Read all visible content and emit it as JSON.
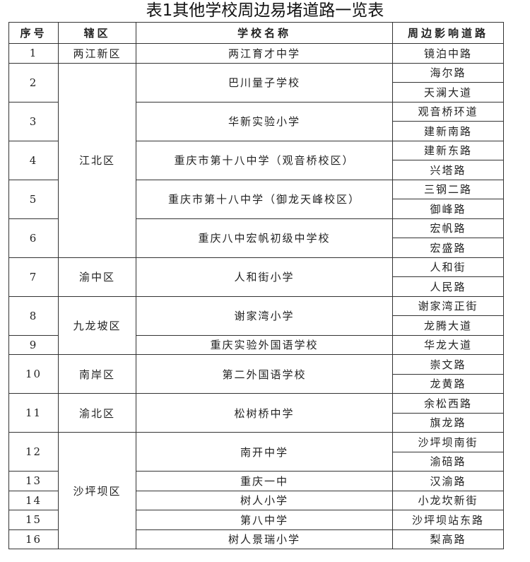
{
  "title": "表1其他学校周边易堵道路一览表",
  "table": {
    "header": [
      "序号",
      "辖区",
      "学校名称",
      "周边影响道路"
    ],
    "districts": [
      {
        "name": "两江新区",
        "schools": [
          {
            "no": "1",
            "name": "两江育才中学",
            "roads": [
              "镜泊中路"
            ]
          }
        ]
      },
      {
        "name": "江北区",
        "schools": [
          {
            "no": "2",
            "name": "巴川量子学校",
            "roads": [
              "海尔路",
              "天澜大道"
            ]
          },
          {
            "no": "3",
            "name": "华新实验小学",
            "roads": [
              "观音桥环道",
              "建新南路"
            ]
          },
          {
            "no": "4",
            "name": "重庆市第十八中学（观音桥校区）",
            "roads": [
              "建新东路",
              "兴塔路"
            ]
          },
          {
            "no": "5",
            "name": "重庆市第十八中学（御龙天峰校区）",
            "roads": [
              "三钢二路",
              "御峰路"
            ]
          },
          {
            "no": "6",
            "name": "重庆八中宏帆初级中学校",
            "roads": [
              "宏帆路",
              "宏盛路"
            ]
          }
        ]
      },
      {
        "name": "渝中区",
        "schools": [
          {
            "no": "7",
            "name": "人和街小学",
            "roads": [
              "人和街",
              "人民路"
            ]
          }
        ]
      },
      {
        "name": "九龙坡区",
        "schools": [
          {
            "no": "8",
            "name": "谢家湾小学",
            "roads": [
              "谢家湾正街",
              "龙腾大道"
            ]
          },
          {
            "no": "9",
            "name": "重庆实验外国语学校",
            "roads": [
              "华龙大道"
            ]
          }
        ]
      },
      {
        "name": "南岸区",
        "schools": [
          {
            "no": "10",
            "name": "第二外国语学校",
            "roads": [
              "崇文路",
              "龙黄路"
            ]
          }
        ]
      },
      {
        "name": "渝北区",
        "schools": [
          {
            "no": "11",
            "name": "松树桥中学",
            "roads": [
              "余松西路",
              "旗龙路"
            ]
          }
        ]
      },
      {
        "name": "沙坪坝区",
        "schools": [
          {
            "no": "12",
            "name": "南开中学",
            "roads": [
              "沙坪坝南街",
              "渝碚路"
            ]
          },
          {
            "no": "13",
            "name": "重庆一中",
            "roads": [
              "汉渝路"
            ]
          },
          {
            "no": "14",
            "name": "树人小学",
            "roads": [
              "小龙坎新街"
            ]
          },
          {
            "no": "15",
            "name": "第八中学",
            "roads": [
              "沙坪坝站东路"
            ]
          },
          {
            "no": "16",
            "name": "树人景瑞小学",
            "roads": [
              "梨高路"
            ]
          }
        ]
      }
    ]
  }
}
